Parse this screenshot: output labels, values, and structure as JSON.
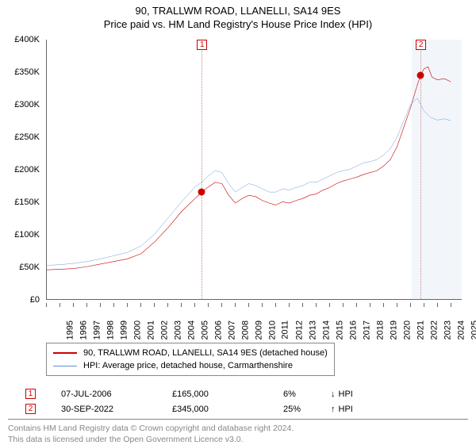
{
  "title": {
    "line1": "90, TRALLWM ROAD, LLANELLI, SA14 9ES",
    "line2": "Price paid vs. HM Land Registry's House Price Index (HPI)"
  },
  "chart": {
    "type": "line",
    "background_color": "#ffffff",
    "forecast_band_color": "#f2f6fb",
    "grid_color": "#666666",
    "xlim": [
      1995,
      2025.8
    ],
    "ylim": [
      0,
      400000
    ],
    "y_ticks": [
      0,
      50000,
      100000,
      150000,
      200000,
      250000,
      300000,
      350000,
      400000
    ],
    "y_tick_labels": [
      "£0",
      "£50K",
      "£100K",
      "£150K",
      "£200K",
      "£250K",
      "£300K",
      "£350K",
      "£400K"
    ],
    "y_label_fontsize": 11,
    "x_ticks": [
      1995,
      1996,
      1997,
      1998,
      1999,
      2000,
      2001,
      2002,
      2003,
      2004,
      2005,
      2006,
      2007,
      2008,
      2009,
      2010,
      2011,
      2012,
      2013,
      2014,
      2015,
      2016,
      2017,
      2018,
      2019,
      2020,
      2021,
      2022,
      2023,
      2024,
      2025
    ],
    "x_label_fontsize": 11,
    "series": [
      {
        "name": "property",
        "label": "90, TRALLWM ROAD, LLANELLI, SA14 9ES (detached house)",
        "color": "#cc0000",
        "width": 2,
        "data": [
          [
            1995,
            45000
          ],
          [
            1996,
            46000
          ],
          [
            1997,
            47000
          ],
          [
            1998,
            50000
          ],
          [
            1999,
            54000
          ],
          [
            2000,
            58000
          ],
          [
            2001,
            62000
          ],
          [
            2002,
            70000
          ],
          [
            2003,
            88000
          ],
          [
            2004,
            110000
          ],
          [
            2005,
            135000
          ],
          [
            2006,
            155000
          ],
          [
            2006.5,
            165000
          ],
          [
            2007,
            173000
          ],
          [
            2007.5,
            180000
          ],
          [
            2008,
            178000
          ],
          [
            2008.5,
            160000
          ],
          [
            2009,
            148000
          ],
          [
            2009.5,
            155000
          ],
          [
            2010,
            160000
          ],
          [
            2010.5,
            158000
          ],
          [
            2011,
            152000
          ],
          [
            2011.5,
            148000
          ],
          [
            2012,
            145000
          ],
          [
            2012.5,
            150000
          ],
          [
            2013,
            148000
          ],
          [
            2013.5,
            152000
          ],
          [
            2014,
            155000
          ],
          [
            2014.5,
            160000
          ],
          [
            2015,
            162000
          ],
          [
            2015.5,
            168000
          ],
          [
            2016,
            172000
          ],
          [
            2016.5,
            178000
          ],
          [
            2017,
            182000
          ],
          [
            2017.5,
            185000
          ],
          [
            2018,
            188000
          ],
          [
            2018.5,
            192000
          ],
          [
            2019,
            195000
          ],
          [
            2019.5,
            198000
          ],
          [
            2020,
            205000
          ],
          [
            2020.5,
            215000
          ],
          [
            2021,
            235000
          ],
          [
            2021.5,
            265000
          ],
          [
            2022,
            295000
          ],
          [
            2022.5,
            330000
          ],
          [
            2022.75,
            345000
          ],
          [
            2023,
            355000
          ],
          [
            2023.3,
            358000
          ],
          [
            2023.6,
            342000
          ],
          [
            2024,
            338000
          ],
          [
            2024.5,
            340000
          ],
          [
            2025,
            335000
          ]
        ]
      },
      {
        "name": "hpi",
        "label": "HPI: Average price, detached house, Carmarthenshire",
        "color": "#5b8fd6",
        "width": 1.5,
        "data": [
          [
            1995,
            52000
          ],
          [
            1996,
            53000
          ],
          [
            1997,
            55000
          ],
          [
            1998,
            58000
          ],
          [
            1999,
            62000
          ],
          [
            2000,
            67000
          ],
          [
            2001,
            72000
          ],
          [
            2002,
            82000
          ],
          [
            2003,
            100000
          ],
          [
            2004,
            125000
          ],
          [
            2005,
            150000
          ],
          [
            2006,
            173000
          ],
          [
            2006.5,
            180000
          ],
          [
            2007,
            190000
          ],
          [
            2007.5,
            198000
          ],
          [
            2008,
            195000
          ],
          [
            2008.5,
            178000
          ],
          [
            2009,
            165000
          ],
          [
            2009.5,
            172000
          ],
          [
            2010,
            178000
          ],
          [
            2010.5,
            175000
          ],
          [
            2011,
            170000
          ],
          [
            2011.5,
            165000
          ],
          [
            2012,
            165000
          ],
          [
            2012.5,
            170000
          ],
          [
            2013,
            168000
          ],
          [
            2013.5,
            172000
          ],
          [
            2014,
            175000
          ],
          [
            2014.5,
            180000
          ],
          [
            2015,
            180000
          ],
          [
            2015.5,
            185000
          ],
          [
            2016,
            190000
          ],
          [
            2016.5,
            195000
          ],
          [
            2017,
            198000
          ],
          [
            2017.5,
            200000
          ],
          [
            2018,
            205000
          ],
          [
            2018.5,
            210000
          ],
          [
            2019,
            212000
          ],
          [
            2019.5,
            215000
          ],
          [
            2020,
            222000
          ],
          [
            2020.5,
            232000
          ],
          [
            2021,
            250000
          ],
          [
            2021.5,
            275000
          ],
          [
            2022,
            300000
          ],
          [
            2022.5,
            310000
          ],
          [
            2023,
            290000
          ],
          [
            2023.5,
            280000
          ],
          [
            2024,
            276000
          ],
          [
            2024.5,
            278000
          ],
          [
            2025,
            275000
          ]
        ]
      }
    ],
    "markers": [
      {
        "id": "1",
        "x": 2006.5,
        "y": 165000,
        "box_color": "#cc0000",
        "vline_color": "#cc8888",
        "point_color": "#cc0000"
      },
      {
        "id": "2",
        "x": 2022.75,
        "y": 345000,
        "box_color": "#cc0000",
        "vline_color": "#cc8888",
        "point_color": "#cc0000"
      }
    ]
  },
  "legend": {
    "border_color": "#888888",
    "fontsize": 11
  },
  "transactions": [
    {
      "id": "1",
      "date": "07-JUL-2006",
      "price": "£165,000",
      "pct": "6%",
      "direction": "down",
      "vs": "HPI"
    },
    {
      "id": "2",
      "date": "30-SEP-2022",
      "price": "£345,000",
      "pct": "25%",
      "direction": "up",
      "vs": "HPI"
    }
  ],
  "attribution": {
    "line1": "Contains HM Land Registry data © Crown copyright and database right 2024.",
    "line2": "This data is licensed under the Open Government Licence v3.0."
  }
}
